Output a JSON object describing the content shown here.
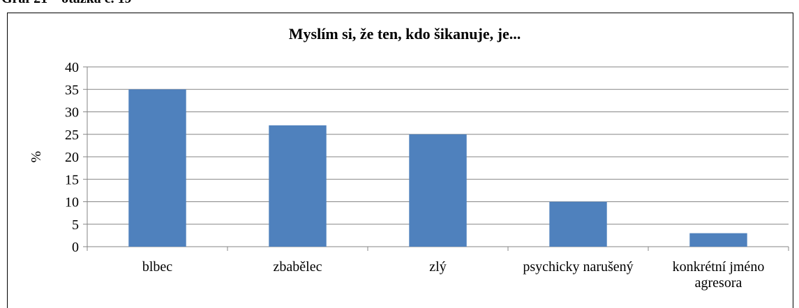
{
  "caption": "Graf 21 – otázka č. 19",
  "chart_data": {
    "type": "bar",
    "title": "Myslím si, že ten, kdo šikanuje, je...",
    "ylabel": "%",
    "categories": [
      "blbec",
      "zbabělec",
      "zlý",
      "psychicky narušený",
      "konkrétní jméno agresora"
    ],
    "values": [
      35,
      27,
      25,
      10,
      3
    ],
    "color": "#4f81bd",
    "ylim": [
      0,
      40
    ],
    "yticks": [
      0,
      5,
      10,
      15,
      20,
      25,
      30,
      35,
      40
    ],
    "grid": true
  }
}
